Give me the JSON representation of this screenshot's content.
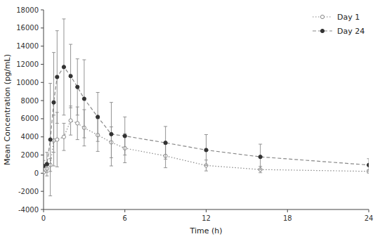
{
  "chart_data": {
    "type": "line",
    "xlabel": "Time (h)",
    "ylabel": "Mean Concentration (pg/mL)",
    "x": [
      0,
      0.25,
      0.5,
      0.75,
      1.0,
      1.5,
      2.0,
      2.5,
      3.0,
      4.0,
      5.0,
      6.0,
      9.0,
      12.0,
      16.0,
      24.0
    ],
    "series": [
      {
        "name": "Day 1",
        "color": "#888888",
        "marker": "open-circle",
        "line_style": "dotted",
        "values": [
          100,
          500,
          900,
          3600,
          3700,
          4000,
          5800,
          5500,
          5000,
          4200,
          3400,
          2750,
          1900,
          850,
          400,
          200
        ],
        "errors": [
          80,
          400,
          700,
          2800,
          3000,
          1500,
          1600,
          1800,
          2000,
          1800,
          1700,
          1600,
          1300,
          600,
          350,
          180
        ]
      },
      {
        "name": "Day 24",
        "color": "#888888",
        "marker": "filled-circle",
        "line_style": "dashed",
        "values": [
          800,
          1000,
          3700,
          7800,
          10600,
          11700,
          10700,
          9500,
          8200,
          6200,
          4300,
          4100,
          3350,
          2550,
          1800,
          900
        ],
        "errors": [
          600,
          1300,
          6200,
          5500,
          5100,
          5300,
          3500,
          3100,
          4300,
          2700,
          3500,
          2100,
          1800,
          1700,
          1400,
          700
        ]
      }
    ],
    "xlim": [
      0,
      24
    ],
    "xticks": [
      0,
      6,
      12,
      18,
      24
    ],
    "ylim": [
      -4000,
      18000
    ],
    "yticks": [
      -4000,
      -2000,
      0,
      2000,
      4000,
      6000,
      8000,
      10000,
      12000,
      14000,
      16000,
      18000
    ],
    "grid": false,
    "legend": "upper right"
  }
}
